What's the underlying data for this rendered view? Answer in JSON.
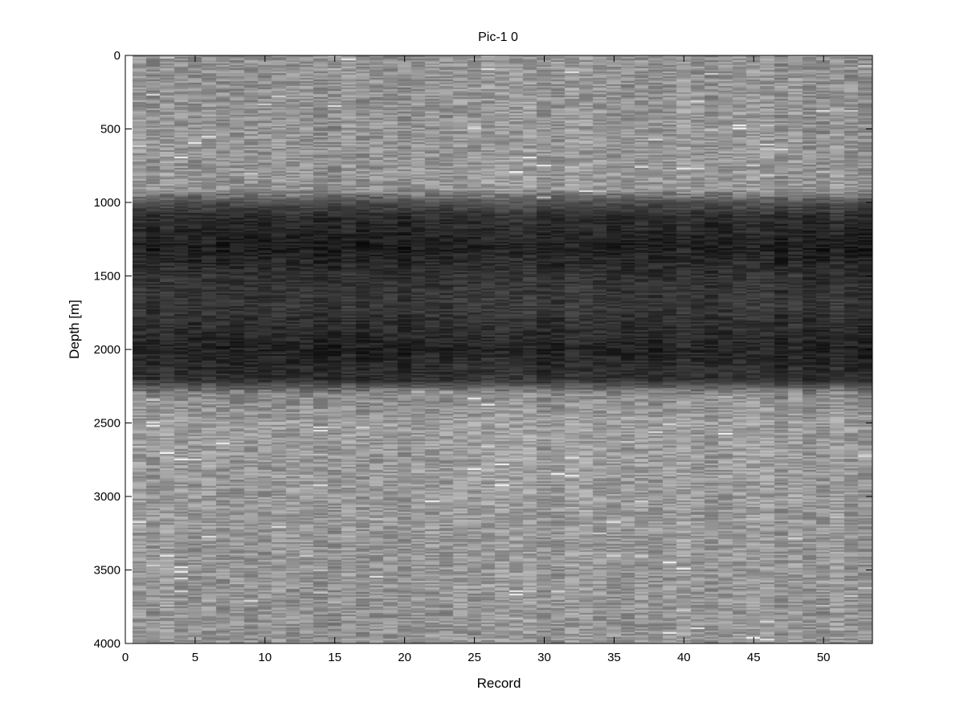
{
  "chart_data": {
    "type": "heatmap",
    "title": "Pic-1 0",
    "xlabel": "Record",
    "ylabel": "Depth [m]",
    "xlim": [
      0,
      53.5
    ],
    "ylim": [
      4000,
      0
    ],
    "y_reversed": true,
    "xticks": [
      0,
      5,
      10,
      15,
      20,
      25,
      30,
      35,
      40,
      45,
      50
    ],
    "yticks": [
      0,
      500,
      1000,
      1500,
      2000,
      2500,
      3000,
      3500,
      4000
    ],
    "records": [
      1,
      53
    ],
    "depth_range": [
      0,
      4000
    ],
    "colormap": "gray",
    "grid": false,
    "intensity_profile": [
      {
        "depth": 0,
        "level": 0.58
      },
      {
        "depth": 900,
        "level": 0.6
      },
      {
        "depth": 1000,
        "level": 0.3
      },
      {
        "depth": 1100,
        "level": 0.18
      },
      {
        "depth": 1300,
        "level": 0.12
      },
      {
        "depth": 1500,
        "level": 0.2
      },
      {
        "depth": 1700,
        "level": 0.22
      },
      {
        "depth": 2000,
        "level": 0.14
      },
      {
        "depth": 2200,
        "level": 0.2
      },
      {
        "depth": 2300,
        "level": 0.55
      },
      {
        "depth": 2500,
        "level": 0.62
      },
      {
        "depth": 4000,
        "level": 0.58
      }
    ]
  }
}
